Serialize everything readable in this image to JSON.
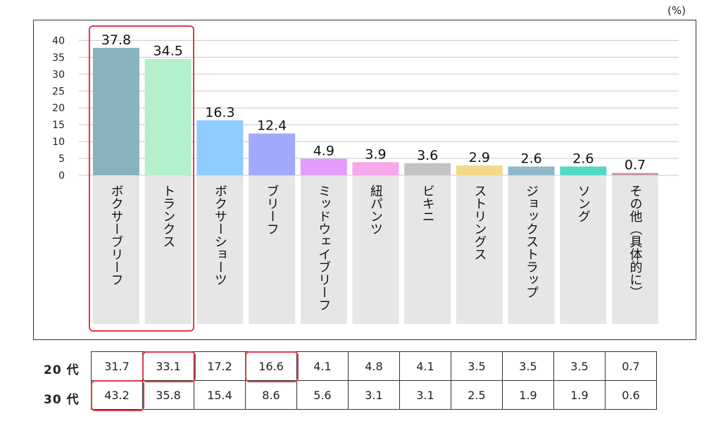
{
  "unit_label": "(%)",
  "colors": {
    "highlight": "#e03a4a",
    "cat_bg": "#e6e6e6",
    "grid": "#c8c8c8"
  },
  "chart_data": {
    "type": "bar",
    "ylim": [
      0,
      40
    ],
    "y_ticks": [
      "0",
      "5",
      "10",
      "15",
      "20",
      "25",
      "30",
      "35",
      "40"
    ],
    "grid": true,
    "categories": [
      "ボクサーブリーフ",
      "トランクス",
      "ボクサーショーツ",
      "ブリーフ",
      "ミッドウェイブリーフ",
      "紐パンツ",
      "ビキニ",
      "ストリングス",
      "ジョックストラップ",
      "ソング",
      "その他（具体的に）"
    ],
    "values": [
      37.8,
      34.5,
      16.3,
      12.4,
      4.9,
      3.9,
      3.6,
      2.9,
      2.6,
      2.6,
      0.7
    ],
    "value_labels": [
      "37.8",
      "34.5",
      "16.3",
      "12.4",
      "4.9",
      "3.9",
      "3.6",
      "2.9",
      "2.6",
      "2.6",
      "0.7"
    ],
    "bar_colors": [
      "#89b3bd",
      "#b3efc9",
      "#8ecbff",
      "#a0a9fb",
      "#e39cfb",
      "#f9a8ec",
      "#c4c4c4",
      "#f3d98a",
      "#8fb7c9",
      "#51d9c6",
      "#c99aa9"
    ],
    "highlight_categories": [
      0,
      1
    ]
  },
  "table": {
    "rows": [
      {
        "label": "20 代",
        "values": [
          "31.7",
          "33.1",
          "17.2",
          "16.6",
          "4.1",
          "4.8",
          "4.1",
          "3.5",
          "3.5",
          "3.5",
          "0.7"
        ],
        "highlight": [
          1,
          3
        ]
      },
      {
        "label": "30 代",
        "values": [
          "43.2",
          "35.8",
          "15.4",
          "8.6",
          "5.6",
          "3.1",
          "3.1",
          "2.5",
          "1.9",
          "1.9",
          "0.6"
        ],
        "highlight": [
          0
        ]
      }
    ]
  }
}
